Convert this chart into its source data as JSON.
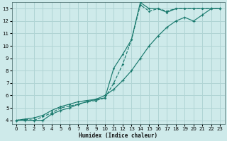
{
  "bg_color": "#ceeaea",
  "grid_color": "#b0d4d4",
  "line_color": "#1a7a6e",
  "xlabel": "Humidex (Indice chaleur)",
  "xlim": [
    -0.5,
    23.5
  ],
  "ylim": [
    3.7,
    13.5
  ],
  "xticks": [
    0,
    1,
    2,
    3,
    4,
    5,
    6,
    7,
    8,
    9,
    10,
    11,
    12,
    13,
    14,
    15,
    16,
    17,
    18,
    19,
    20,
    21,
    22,
    23
  ],
  "yticks": [
    4,
    5,
    6,
    7,
    8,
    9,
    10,
    11,
    12,
    13
  ],
  "line1_x": [
    0,
    1,
    2,
    3,
    4,
    5,
    6,
    7,
    8,
    9,
    10,
    11,
    12,
    13,
    14,
    15,
    16,
    17,
    18,
    19,
    20,
    21,
    22,
    23
  ],
  "line1_y": [
    4.0,
    4.1,
    4.0,
    4.3,
    4.6,
    5.0,
    5.15,
    5.3,
    5.5,
    5.6,
    5.8,
    7.0,
    8.5,
    10.5,
    13.3,
    12.8,
    13.0,
    12.8,
    13.0,
    13.0,
    13.0,
    13.0,
    13.0,
    13.0
  ],
  "line2_x": [
    0,
    1,
    2,
    3,
    4,
    5,
    6,
    7,
    8,
    9,
    10,
    11,
    12,
    13,
    14,
    15,
    16,
    17,
    18,
    19,
    20,
    21,
    22,
    23
  ],
  "line2_y": [
    4.0,
    4.0,
    4.0,
    4.0,
    4.5,
    4.8,
    5.0,
    5.3,
    5.5,
    5.7,
    6.0,
    6.5,
    7.2,
    8.0,
    9.0,
    10.0,
    10.8,
    11.5,
    12.0,
    12.3,
    12.0,
    12.5,
    13.0,
    13.0
  ],
  "line3_x": [
    0,
    2,
    3,
    4,
    5,
    6,
    7,
    8,
    9,
    10,
    11,
    12,
    13,
    14,
    15,
    16,
    17,
    18,
    19,
    20,
    21,
    22,
    23
  ],
  "line3_y": [
    4.0,
    4.2,
    4.4,
    4.8,
    5.1,
    5.3,
    5.5,
    5.6,
    5.7,
    5.8,
    8.2,
    9.3,
    10.5,
    13.5,
    13.0,
    13.0,
    12.7,
    13.0,
    13.0,
    13.0,
    13.0,
    13.0,
    13.0
  ]
}
